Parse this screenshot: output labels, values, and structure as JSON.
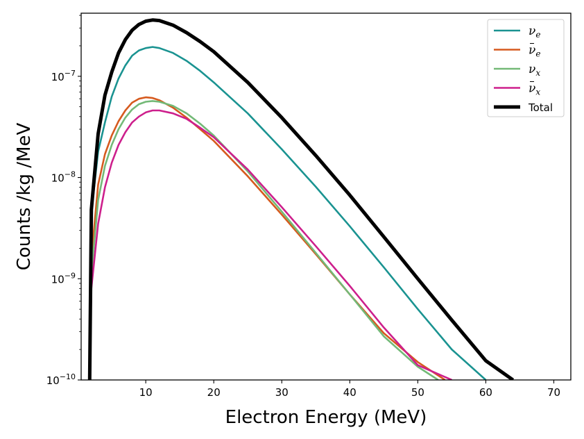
{
  "chart_data": {
    "type": "line",
    "title": "",
    "xlabel": "Electron Energy (MeV)",
    "ylabel": "Counts /kg /MeV",
    "xlim": [
      0.5,
      72.5
    ],
    "ylim": [
      1e-10,
      4.2e-07
    ],
    "yscale": "log",
    "grid": false,
    "legend_position": "top-right",
    "x_ticks": [
      10,
      20,
      30,
      40,
      50,
      60,
      70
    ],
    "x_tick_labels": [
      "10",
      "20",
      "30",
      "40",
      "50",
      "60",
      "70"
    ],
    "y_ticks": [
      {
        "value": 1e-10,
        "base": "10",
        "exp": "−10"
      },
      {
        "value": 1e-09,
        "base": "10",
        "exp": "−9"
      },
      {
        "value": 1e-08,
        "base": "10",
        "exp": "−8"
      },
      {
        "value": 1e-07,
        "base": "10",
        "exp": "−7"
      }
    ],
    "series": [
      {
        "name": "nu_e",
        "label_main": "ν",
        "label_sub": "e",
        "bar": false,
        "color": "#1a9391",
        "width": 2.6,
        "x": [
          1.75,
          2,
          3,
          4,
          5,
          6,
          7,
          8,
          9,
          10,
          11,
          12,
          14,
          16,
          18,
          20,
          25,
          30,
          35,
          40,
          45,
          50,
          55,
          60
        ],
        "y": [
          1e-10,
          4.5e-09,
          1.8e-08,
          3.5e-08,
          6.3e-08,
          9.5e-08,
          1.28e-07,
          1.6e-07,
          1.8e-07,
          1.9e-07,
          1.95e-07,
          1.9e-07,
          1.7e-07,
          1.42e-07,
          1.13e-07,
          8.7e-08,
          4.3e-08,
          1.9e-08,
          8.1e-09,
          3.3e-09,
          1.3e-09,
          5e-10,
          2e-10,
          1e-10
        ]
      },
      {
        "name": "nu_e_bar",
        "label_main": "ν",
        "label_sub": "e",
        "bar": true,
        "color": "#d65a1e",
        "width": 2.6,
        "x": [
          1.75,
          2,
          3,
          4,
          5,
          6,
          7,
          8,
          9,
          10,
          11,
          12,
          14,
          16,
          18,
          20,
          25,
          30,
          35,
          40,
          45,
          50,
          54
        ],
        "y": [
          1e-10,
          1.6e-09,
          8.5e-09,
          1.7e-08,
          2.6e-08,
          3.6e-08,
          4.6e-08,
          5.5e-08,
          6e-08,
          6.2e-08,
          6.1e-08,
          5.8e-08,
          4.9e-08,
          3.9e-08,
          3e-08,
          2.3e-08,
          1.03e-08,
          4.3e-09,
          1.75e-09,
          7e-10,
          2.9e-10,
          1.5e-10,
          1e-10
        ]
      },
      {
        "name": "nu_x",
        "label_main": "ν",
        "label_sub": "x",
        "bar": false,
        "color": "#73b977",
        "width": 2.6,
        "x": [
          1.75,
          2,
          3,
          4,
          5,
          6,
          7,
          8,
          9,
          10,
          11,
          12,
          14,
          16,
          18,
          20,
          25,
          30,
          35,
          40,
          45,
          50,
          53
        ],
        "y": [
          1e-10,
          1.1e-09,
          6e-09,
          1.3e-08,
          2.1e-08,
          3e-08,
          3.9e-08,
          4.7e-08,
          5.3e-08,
          5.6e-08,
          5.7e-08,
          5.6e-08,
          5.1e-08,
          4.3e-08,
          3.4e-08,
          2.6e-08,
          1.15e-08,
          4.6e-09,
          1.8e-09,
          7e-10,
          2.7e-10,
          1.35e-10,
          1e-10
        ]
      },
      {
        "name": "nu_x_bar",
        "label_main": "ν",
        "label_sub": "x",
        "bar": true,
        "color": "#cd1f8c",
        "width": 2.6,
        "x": [
          1.75,
          2,
          3,
          4,
          5,
          6,
          7,
          8,
          9,
          10,
          11,
          12,
          14,
          16,
          18,
          20,
          25,
          30,
          35,
          40,
          45,
          50,
          55
        ],
        "y": [
          1e-10,
          8e-10,
          3.5e-09,
          8e-09,
          1.4e-08,
          2.1e-08,
          2.8e-08,
          3.5e-08,
          4e-08,
          4.4e-08,
          4.6e-08,
          4.6e-08,
          4.3e-08,
          3.8e-08,
          3.1e-08,
          2.5e-08,
          1.2e-08,
          5.1e-09,
          2.1e-09,
          8.5e-10,
          3.3e-10,
          1.4e-10,
          1e-10
        ]
      },
      {
        "name": "Total",
        "label_main": "Total",
        "label_sub": "",
        "bar": false,
        "color": "#000000",
        "width": 5,
        "x": [
          1.75,
          2,
          3,
          4,
          5,
          6,
          7,
          8,
          9,
          10,
          11,
          12,
          14,
          16,
          18,
          20,
          25,
          30,
          35,
          40,
          45,
          50,
          55,
          60,
          64
        ],
        "y": [
          1e-10,
          4.8e-09,
          2.7e-08,
          6.5e-08,
          1.1e-07,
          1.7e-07,
          2.3e-07,
          2.85e-07,
          3.25e-07,
          3.5e-07,
          3.6e-07,
          3.55e-07,
          3.2e-07,
          2.7e-07,
          2.2e-07,
          1.75e-07,
          8.7e-08,
          3.9e-08,
          1.65e-08,
          6.7e-09,
          2.6e-09,
          1e-09,
          3.9e-10,
          1.55e-10,
          1e-10
        ]
      }
    ]
  }
}
